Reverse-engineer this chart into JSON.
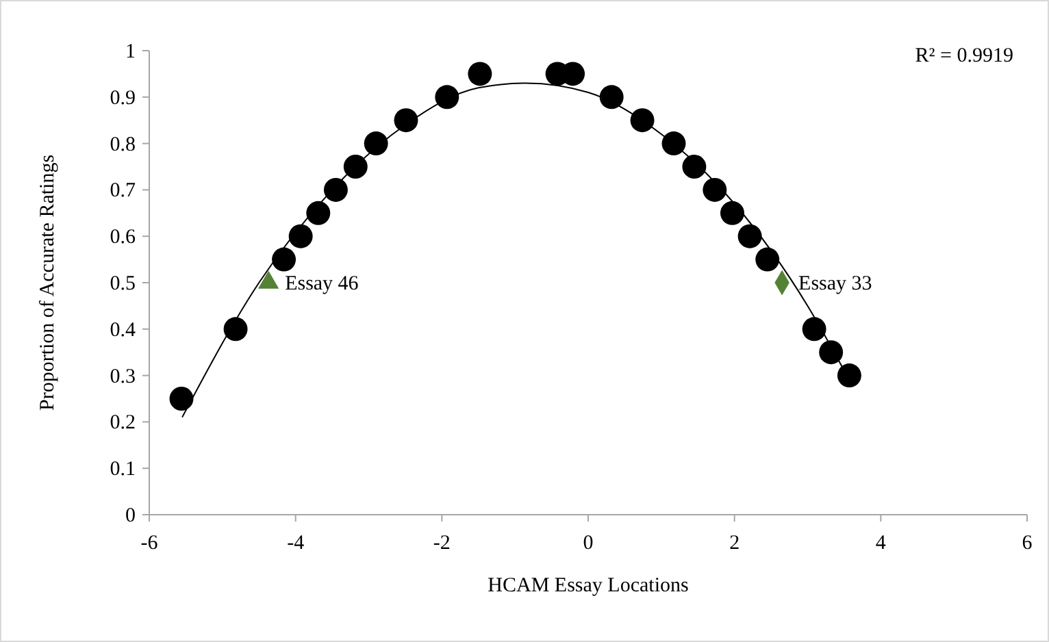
{
  "chart_data": {
    "type": "scatter",
    "xlabel": "HCAM Essay Locations",
    "ylabel": "Proportion of Accurate Ratings",
    "xlim": [
      -6,
      6
    ],
    "xticks": [
      -6,
      -4,
      -2,
      0,
      2,
      4,
      6
    ],
    "ylim": [
      0,
      1
    ],
    "yticks": [
      0,
      0.1,
      0.2,
      0.3,
      0.4,
      0.5,
      0.6,
      0.7,
      0.8,
      0.9,
      1
    ],
    "grid": false,
    "annotations": [
      "R² = 0.9919"
    ],
    "series": [
      {
        "type": "line",
        "color": "#000000",
        "marker": "none",
        "x": [
          -5.55,
          -4.5,
          -3.5,
          -2.5,
          -1.5,
          -0.85,
          0,
          1,
          2,
          3,
          3.57
        ],
        "values": [
          0.21,
          0.5,
          0.7,
          0.84,
          0.92,
          0.93,
          0.91,
          0.82,
          0.67,
          0.45,
          0.29
        ]
      },
      {
        "color": "#000000",
        "marker": "circle",
        "x": [
          -5.56,
          -4.82,
          -4.16,
          -3.93,
          -3.69,
          -3.45,
          -3.18,
          -2.9,
          -2.49,
          -1.93,
          -1.48,
          -0.42,
          -0.21,
          0.32,
          0.74,
          1.17,
          1.45,
          1.73,
          1.97,
          2.21,
          2.45,
          3.09,
          3.32,
          3.57
        ],
        "values": [
          0.25,
          0.4,
          0.55,
          0.6,
          0.65,
          0.7,
          0.75,
          0.8,
          0.85,
          0.9,
          0.95,
          0.95,
          0.95,
          0.9,
          0.85,
          0.8,
          0.75,
          0.7,
          0.65,
          0.6,
          0.55,
          0.4,
          0.35,
          0.3
        ]
      },
      {
        "name": "Essay 46",
        "color": "#548235",
        "marker": "triangle",
        "x": [
          -4.37
        ],
        "values": [
          0.5
        ]
      },
      {
        "name": "Essay 33",
        "color": "#548235",
        "marker": "diamond",
        "x": [
          2.65
        ],
        "values": [
          0.5
        ]
      }
    ]
  }
}
